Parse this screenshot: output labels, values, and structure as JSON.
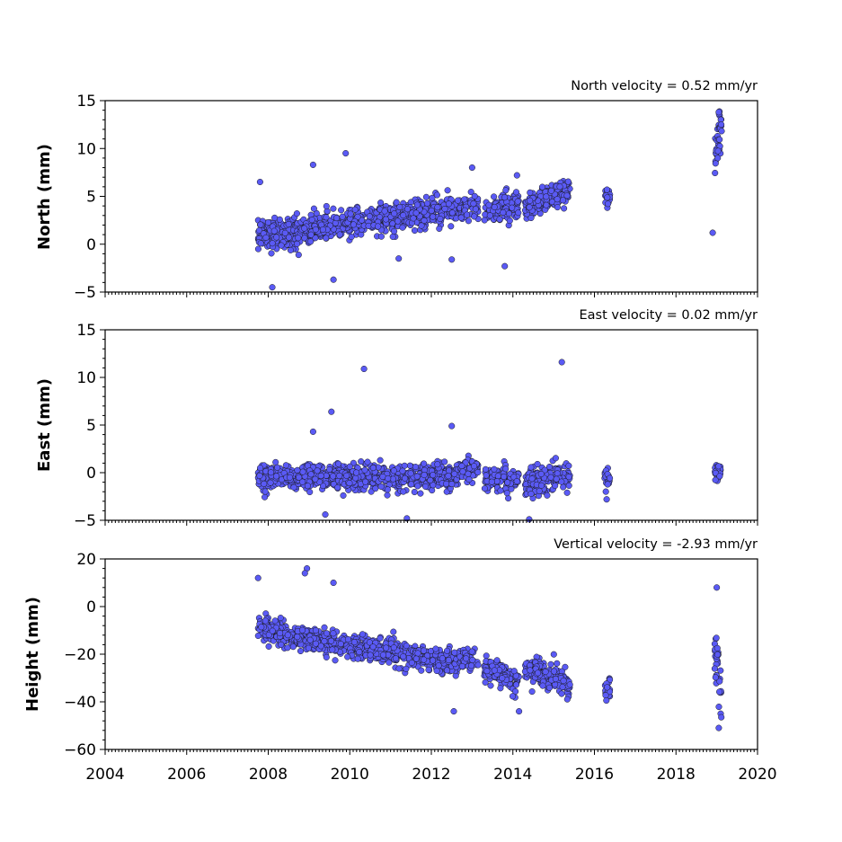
{
  "chart_data": [
    {
      "type": "scatter",
      "annotation": "North velocity = 0.52 mm/yr",
      "ylabel": "North (mm)",
      "xlim": [
        2004,
        2020
      ],
      "ylim": [
        -5,
        15
      ],
      "yticks": [
        -5,
        0,
        5,
        10,
        15
      ],
      "xticks": [
        2004,
        2006,
        2008,
        2010,
        2012,
        2014,
        2016,
        2018,
        2020
      ],
      "show_x_labels": false,
      "segments": [
        {
          "start": 2007.75,
          "end": 2008.7,
          "center0": 0.8,
          "center1": 1.3,
          "spread": 1.6,
          "density": 180
        },
        {
          "start": 2008.7,
          "end": 2012.7,
          "center0": 1.3,
          "center1": 3.8,
          "spread": 1.4,
          "density": 150
        },
        {
          "start": 2012.7,
          "end": 2013.15,
          "center0": 3.5,
          "center1": 4.0,
          "spread": 1.3,
          "density": 120
        },
        {
          "start": 2013.3,
          "end": 2014.15,
          "center0": 3.2,
          "center1": 4.5,
          "spread": 1.5,
          "density": 150
        },
        {
          "start": 2014.3,
          "end": 2015.4,
          "center0": 3.8,
          "center1": 5.7,
          "spread": 1.3,
          "density": 170
        },
        {
          "start": 2016.25,
          "end": 2016.38,
          "center0": 4.8,
          "center1": 4.8,
          "spread": 1.1,
          "density": 150
        },
        {
          "start": 2018.95,
          "end": 2019.12,
          "center0": 8.5,
          "center1": 12.0,
          "spread": 2.6,
          "density": 200
        }
      ],
      "outliers": [
        [
          2009.9,
          9.5
        ],
        [
          2009.1,
          8.3
        ],
        [
          2007.8,
          6.5
        ],
        [
          2008.1,
          -4.5
        ],
        [
          2009.6,
          -3.7
        ],
        [
          2013.0,
          8.0
        ],
        [
          2013.8,
          -2.3
        ],
        [
          2014.1,
          7.2
        ],
        [
          2018.9,
          1.2
        ],
        [
          2019.05,
          13.8
        ],
        [
          2012.5,
          -1.6
        ],
        [
          2011.2,
          -1.5
        ]
      ]
    },
    {
      "type": "scatter",
      "annotation": "East velocity = 0.02 mm/yr",
      "ylabel": "East (mm)",
      "xlim": [
        2004,
        2020
      ],
      "ylim": [
        -5,
        15
      ],
      "yticks": [
        -5,
        0,
        5,
        10,
        15
      ],
      "xticks": [
        2004,
        2006,
        2008,
        2010,
        2012,
        2014,
        2016,
        2018,
        2020
      ],
      "show_x_labels": false,
      "segments": [
        {
          "start": 2007.75,
          "end": 2012.7,
          "center0": -0.4,
          "center1": -0.5,
          "spread": 1.3,
          "density": 170
        },
        {
          "start": 2012.7,
          "end": 2013.15,
          "center0": 0.2,
          "center1": 0.2,
          "spread": 1.2,
          "density": 120
        },
        {
          "start": 2013.3,
          "end": 2014.15,
          "center0": -0.7,
          "center1": -0.7,
          "spread": 1.2,
          "density": 150
        },
        {
          "start": 2014.3,
          "end": 2015.4,
          "center0": -1.0,
          "center1": -0.2,
          "spread": 1.4,
          "density": 170
        },
        {
          "start": 2016.25,
          "end": 2016.38,
          "center0": -0.3,
          "center1": -0.3,
          "spread": 1.0,
          "density": 150
        },
        {
          "start": 2018.95,
          "end": 2019.12,
          "center0": 0.2,
          "center1": 0.2,
          "spread": 1.3,
          "density": 200
        }
      ],
      "outliers": [
        [
          2010.35,
          10.9
        ],
        [
          2015.2,
          11.6
        ],
        [
          2009.55,
          6.4
        ],
        [
          2012.5,
          4.9
        ],
        [
          2009.1,
          4.3
        ],
        [
          2014.4,
          -4.9
        ],
        [
          2011.4,
          -4.8
        ],
        [
          2009.4,
          -4.4
        ],
        [
          2016.3,
          -2.8
        ]
      ]
    },
    {
      "type": "scatter",
      "annotation": "Vertical velocity = -2.93 mm/yr",
      "ylabel": "Height (mm)",
      "xlim": [
        2004,
        2020
      ],
      "ylim": [
        -60,
        20
      ],
      "yticks": [
        -60,
        -40,
        -20,
        0,
        20
      ],
      "xticks": [
        2004,
        2006,
        2008,
        2010,
        2012,
        2014,
        2016,
        2018,
        2020
      ],
      "show_x_labels": true,
      "segments": [
        {
          "start": 2007.75,
          "end": 2008.7,
          "center0": -9,
          "center1": -13,
          "spread": 5.0,
          "density": 180
        },
        {
          "start": 2008.7,
          "end": 2012.7,
          "center0": -13,
          "center1": -24,
          "spread": 5.0,
          "density": 150
        },
        {
          "start": 2012.7,
          "end": 2013.15,
          "center0": -22,
          "center1": -23,
          "spread": 4.5,
          "density": 120
        },
        {
          "start": 2013.3,
          "end": 2014.15,
          "center0": -26,
          "center1": -31,
          "spread": 5.0,
          "density": 150
        },
        {
          "start": 2014.3,
          "end": 2015.4,
          "center0": -26,
          "center1": -33,
          "spread": 5.5,
          "density": 170
        },
        {
          "start": 2016.25,
          "end": 2016.38,
          "center0": -35,
          "center1": -35,
          "spread": 5.0,
          "density": 150
        },
        {
          "start": 2018.95,
          "end": 2019.12,
          "center0": -18,
          "center1": -38,
          "spread": 12.0,
          "density": 200
        }
      ],
      "outliers": [
        [
          2008.95,
          16
        ],
        [
          2008.9,
          14
        ],
        [
          2007.75,
          12
        ],
        [
          2009.6,
          10
        ],
        [
          2012.55,
          -44
        ],
        [
          2014.15,
          -44
        ],
        [
          2019.0,
          8
        ],
        [
          2019.05,
          -51
        ]
      ]
    }
  ]
}
